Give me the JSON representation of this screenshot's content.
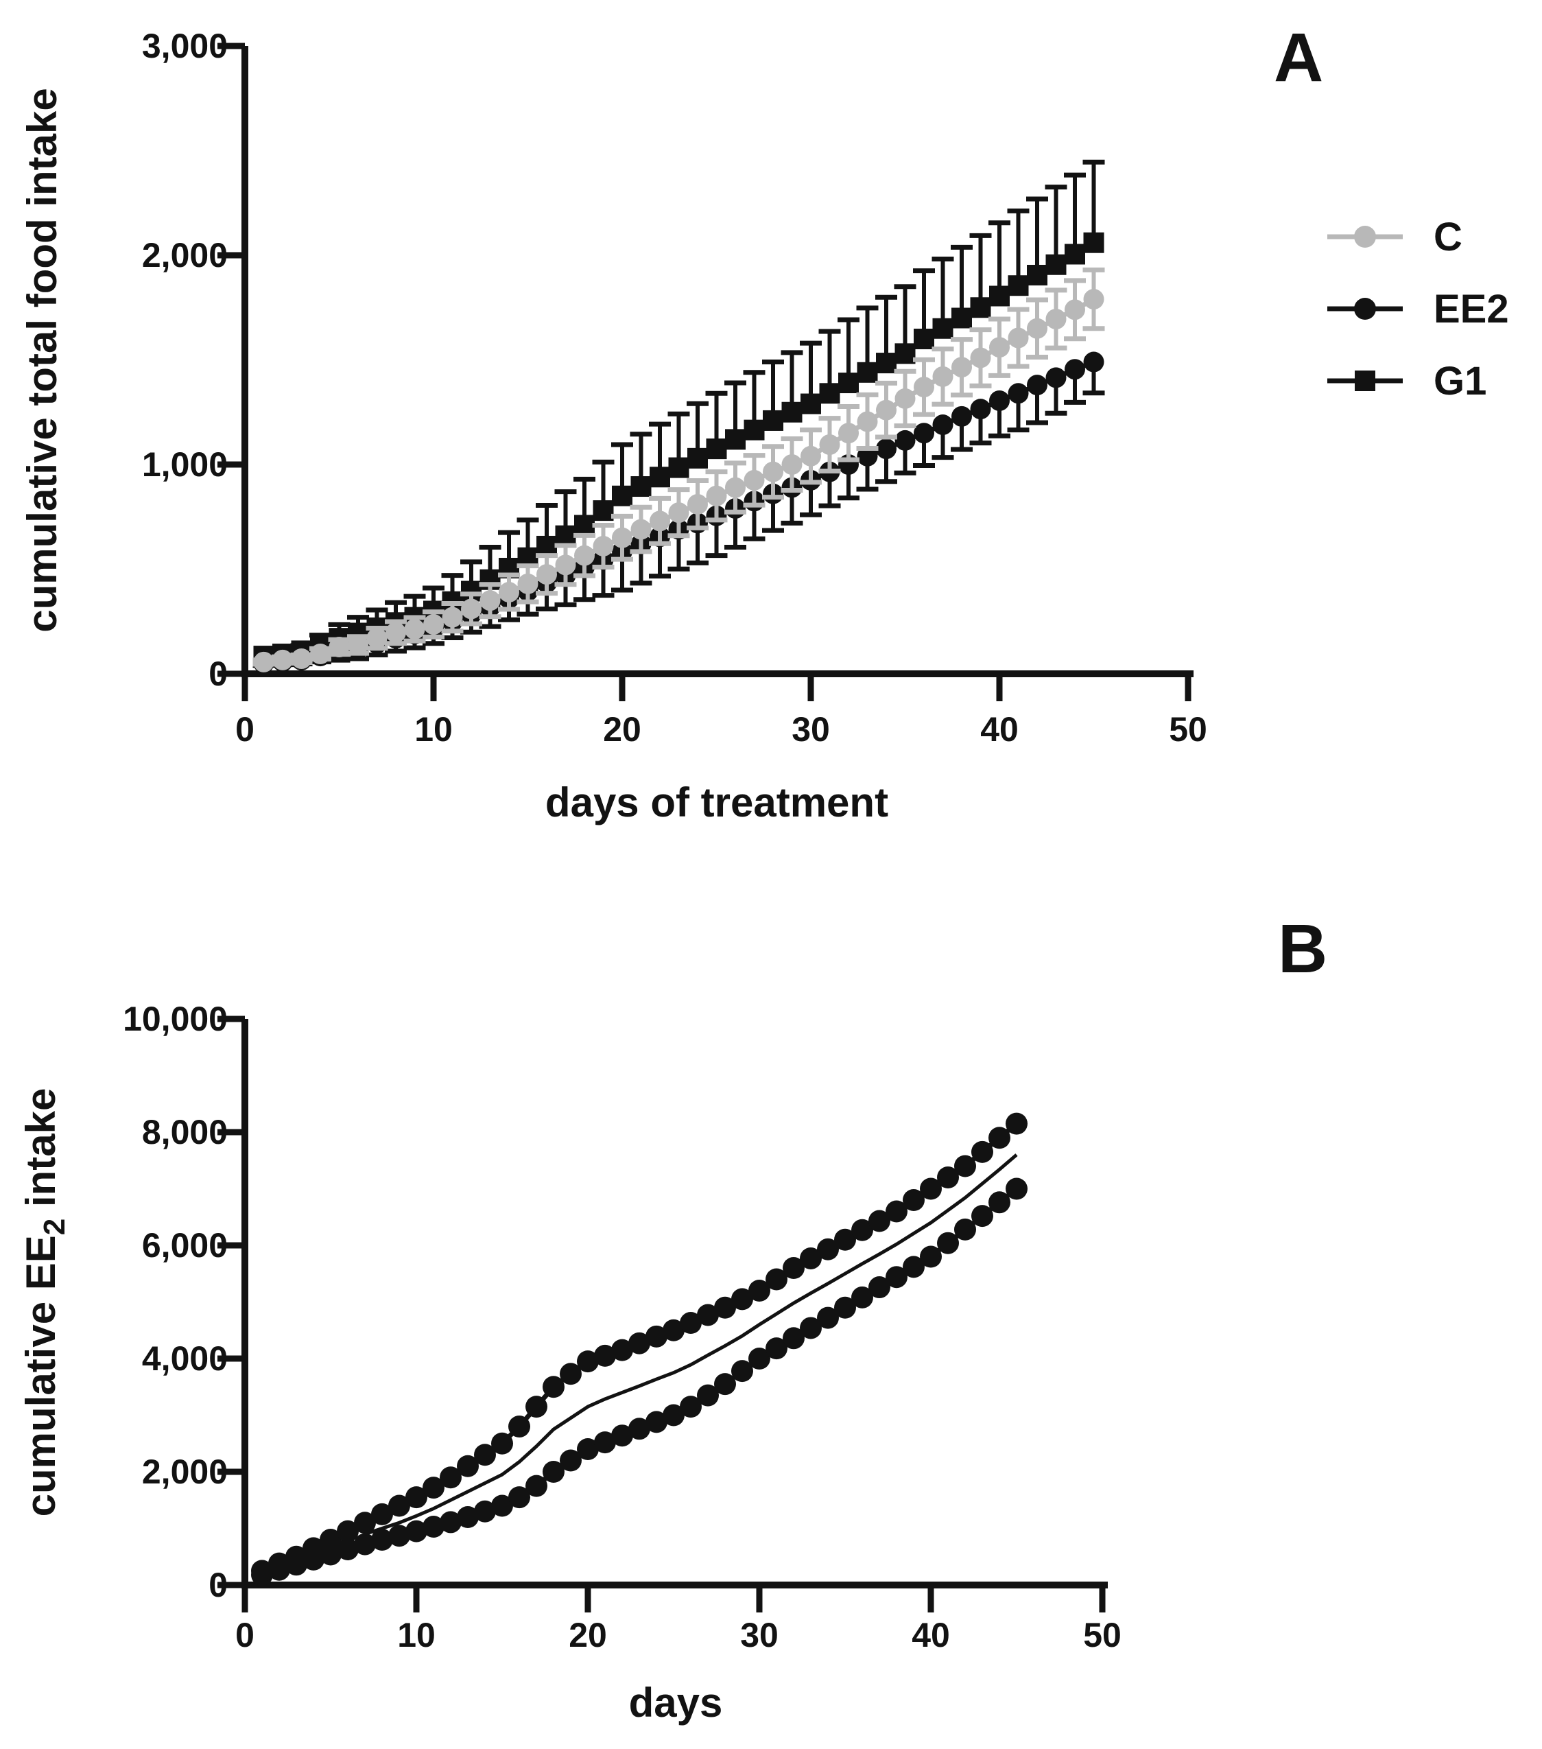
{
  "figure": {
    "panel_a_letter": "A",
    "panel_b_letter": "B",
    "background": "#ffffff",
    "ink_color": "#121212",
    "gray_color": "#b8b8b8"
  },
  "chart_data": [
    {
      "type": "scatter",
      "panel": "A",
      "title": "",
      "xlabel": "days of treatment",
      "ylabel": "cumulative total food intake",
      "xlim": [
        0,
        50
      ],
      "ylim": [
        0,
        3000
      ],
      "grid": false,
      "xticks": [
        0,
        10,
        20,
        30,
        40,
        50
      ],
      "xtick_labels": [
        "0",
        "10",
        "20",
        "30",
        "40",
        "50"
      ],
      "yticks": [
        0,
        1000,
        2000,
        3000
      ],
      "ytick_labels": [
        "0",
        "1,000",
        "2,000",
        "3,000"
      ],
      "days": [
        1,
        2,
        3,
        4,
        5,
        6,
        7,
        8,
        9,
        10,
        11,
        12,
        13,
        14,
        15,
        16,
        17,
        18,
        19,
        20,
        21,
        22,
        23,
        24,
        25,
        26,
        27,
        28,
        29,
        30,
        31,
        32,
        33,
        34,
        35,
        36,
        37,
        38,
        39,
        40,
        41,
        42,
        43,
        44,
        45
      ],
      "legend_position": "right",
      "legend_items": [
        "C",
        "EE2",
        "G1"
      ],
      "series": [
        {
          "name": "C",
          "marker": "circle",
          "color": "#b8b8b8",
          "error_dir": "both",
          "values": [
            56,
            66,
            72,
            95,
            128,
            138,
            170,
            197,
            213,
            236,
            270,
            310,
            350,
            390,
            430,
            475,
            520,
            565,
            610,
            650,
            690,
            730,
            770,
            810,
            850,
            890,
            925,
            965,
            1000,
            1040,
            1095,
            1150,
            1205,
            1260,
            1315,
            1370,
            1420,
            1465,
            1510,
            1560,
            1605,
            1650,
            1695,
            1740,
            1790
          ],
          "errors": [
            10,
            15,
            18,
            25,
            35,
            40,
            48,
            52,
            56,
            60,
            66,
            71,
            77,
            82,
            86,
            90,
            93,
            96,
            100,
            103,
            106,
            108,
            110,
            113,
            115,
            117,
            119,
            121,
            123,
            125,
            126,
            127,
            128,
            129,
            130,
            131,
            132,
            133,
            134,
            135,
            136,
            137,
            138,
            139,
            140
          ]
        },
        {
          "name": "EE2",
          "marker": "circle",
          "color": "#121212",
          "error_dir": "down",
          "values": [
            50,
            58,
            65,
            85,
            105,
            120,
            145,
            170,
            190,
            215,
            250,
            285,
            320,
            360,
            395,
            435,
            470,
            510,
            545,
            585,
            620,
            655,
            690,
            720,
            755,
            790,
            825,
            860,
            890,
            925,
            965,
            1000,
            1040,
            1075,
            1115,
            1150,
            1190,
            1230,
            1265,
            1305,
            1340,
            1380,
            1415,
            1455,
            1490
          ],
          "errors": [
            10,
            14,
            18,
            28,
            40,
            48,
            55,
            62,
            66,
            70,
            78,
            86,
            94,
            102,
            110,
            125,
            140,
            155,
            170,
            185,
            187,
            188,
            189,
            190,
            190,
            185,
            180,
            175,
            170,
            165,
            162,
            160,
            158,
            156,
            155,
            155,
            156,
            158,
            162,
            168,
            175,
            180,
            170,
            158,
            148
          ]
        },
        {
          "name": "G1",
          "marker": "square",
          "color": "#121212",
          "error_dir": "up",
          "values": [
            85,
            95,
            110,
            140,
            170,
            195,
            220,
            245,
            270,
            300,
            345,
            395,
            450,
            505,
            555,
            610,
            660,
            710,
            780,
            850,
            895,
            940,
            985,
            1030,
            1075,
            1120,
            1165,
            1210,
            1250,
            1290,
            1340,
            1390,
            1440,
            1485,
            1530,
            1600,
            1650,
            1700,
            1750,
            1805,
            1855,
            1905,
            1955,
            2005,
            2060
          ],
          "errors": [
            0,
            15,
            25,
            45,
            65,
            75,
            85,
            95,
            100,
            110,
            125,
            140,
            155,
            170,
            180,
            195,
            210,
            220,
            232,
            245,
            250,
            253,
            257,
            261,
            265,
            270,
            275,
            280,
            285,
            290,
            296,
            302,
            308,
            314,
            320,
            326,
            332,
            338,
            344,
            350,
            357,
            364,
            371,
            378,
            385
          ]
        }
      ]
    },
    {
      "type": "scatter",
      "panel": "B",
      "title": "",
      "xlabel": "days",
      "ylabel": "cumulative EE2 intake",
      "ylabel_parts": [
        "cumulative EE",
        "2",
        " intake"
      ],
      "xlim": [
        0,
        50
      ],
      "ylim": [
        0,
        10000
      ],
      "grid": false,
      "xticks": [
        0,
        10,
        20,
        30,
        40,
        50
      ],
      "xtick_labels": [
        "0",
        "10",
        "20",
        "30",
        "40",
        "50"
      ],
      "yticks": [
        0,
        2000,
        4000,
        6000,
        8000,
        10000
      ],
      "ytick_labels": [
        "0",
        "2,000",
        "4,000",
        "6,000",
        "8,000",
        "10,000"
      ],
      "days": [
        1,
        2,
        3,
        4,
        5,
        6,
        7,
        8,
        9,
        10,
        11,
        12,
        13,
        14,
        15,
        16,
        17,
        18,
        19,
        20,
        21,
        22,
        23,
        24,
        25,
        26,
        27,
        28,
        29,
        30,
        31,
        32,
        33,
        34,
        35,
        36,
        37,
        38,
        39,
        40,
        41,
        42,
        43,
        44,
        45
      ],
      "series": [
        {
          "name": "upper-band",
          "marker": "circle",
          "color": "#121212",
          "values": [
            250,
            380,
            500,
            650,
            800,
            950,
            1100,
            1250,
            1400,
            1550,
            1720,
            1900,
            2100,
            2300,
            2500,
            2800,
            3150,
            3500,
            3730,
            3950,
            4050,
            4150,
            4270,
            4390,
            4500,
            4630,
            4770,
            4900,
            5050,
            5200,
            5400,
            5600,
            5770,
            5930,
            6100,
            6270,
            6430,
            6600,
            6800,
            7000,
            7200,
            7400,
            7650,
            7900,
            8150
          ]
        },
        {
          "name": "lower-band",
          "marker": "circle",
          "color": "#121212",
          "values": [
            180,
            270,
            360,
            450,
            540,
            630,
            720,
            800,
            870,
            950,
            1030,
            1110,
            1200,
            1300,
            1400,
            1550,
            1750,
            2000,
            2200,
            2400,
            2520,
            2640,
            2760,
            2880,
            3000,
            3150,
            3350,
            3550,
            3780,
            4000,
            4180,
            4360,
            4540,
            4720,
            4900,
            5080,
            5260,
            5440,
            5620,
            5800,
            6040,
            6280,
            6520,
            6760,
            7000
          ]
        },
        {
          "name": "mean-line",
          "marker": "none",
          "color": "#121212",
          "x_start": 7,
          "values": [
            900,
            1000,
            1100,
            1220,
            1350,
            1500,
            1650,
            1800,
            1950,
            2175,
            2450,
            2750,
            2950,
            3150,
            3285,
            3400,
            3515,
            3635,
            3750,
            3890,
            4060,
            4225,
            4400,
            4600,
            4790,
            4980,
            5155,
            5325,
            5500,
            5675,
            5845,
            6020,
            6210,
            6400,
            6620,
            6840,
            7090,
            7340,
            7600
          ]
        }
      ]
    }
  ]
}
